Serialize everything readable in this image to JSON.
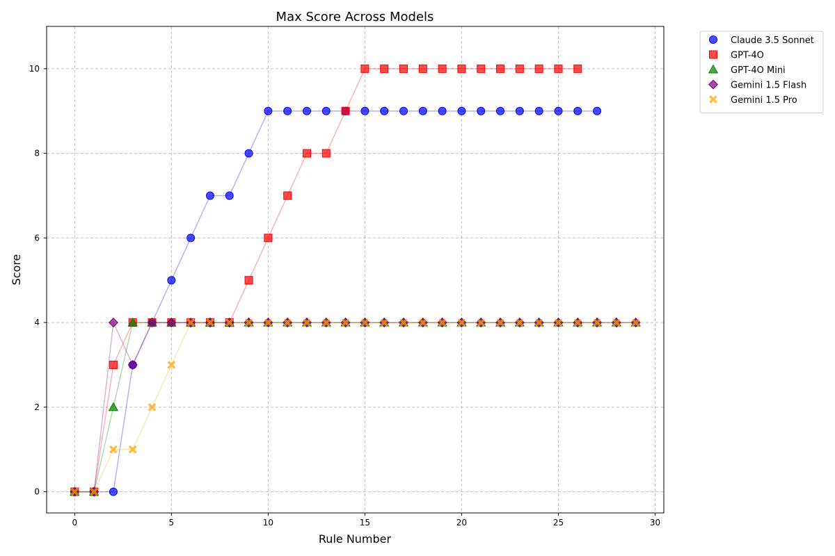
{
  "chart_data": {
    "type": "scatter",
    "title": "Max Score Across Models",
    "xlabel": "Rule Number",
    "ylabel": "Score",
    "xlim": [
      -1.45,
      30.45
    ],
    "ylim": [
      -0.5,
      11
    ],
    "xticks": [
      0,
      5,
      10,
      15,
      20,
      25,
      30
    ],
    "yticks": [
      0,
      2,
      4,
      6,
      8,
      10
    ],
    "grid": true,
    "legend_position": "outside-top-right",
    "series": [
      {
        "name": "Claude 3.5 Sonnet",
        "color": "#0000ff",
        "marker": "circle",
        "x": [
          0,
          1,
          2,
          3,
          4,
          5,
          6,
          7,
          8,
          9,
          10,
          11,
          12,
          13,
          14,
          15,
          16,
          17,
          18,
          19,
          20,
          21,
          22,
          23,
          24,
          25,
          26,
          27
        ],
        "y": [
          0,
          0,
          0,
          3,
          4,
          5,
          6,
          7,
          7,
          8,
          9,
          9,
          9,
          9,
          9,
          9,
          9,
          9,
          9,
          9,
          9,
          9,
          9,
          9,
          9,
          9,
          9,
          9
        ]
      },
      {
        "name": "GPT-4O",
        "color": "#ff0000",
        "marker": "square",
        "x": [
          0,
          1,
          2,
          3,
          4,
          5,
          6,
          7,
          8,
          9,
          10,
          11,
          12,
          13,
          14,
          15,
          16,
          17,
          18,
          19,
          20,
          21,
          22,
          23,
          24,
          25,
          26
        ],
        "y": [
          0,
          0,
          3,
          4,
          4,
          4,
          4,
          4,
          4,
          5,
          6,
          7,
          8,
          8,
          9,
          10,
          10,
          10,
          10,
          10,
          10,
          10,
          10,
          10,
          10,
          10,
          10
        ]
      },
      {
        "name": "GPT-4O Mini",
        "color": "#008000",
        "marker": "triangle",
        "x": [
          0,
          1,
          2,
          3,
          4,
          5,
          6,
          7,
          8,
          9,
          10,
          11,
          12,
          13,
          14,
          15,
          16,
          17,
          18,
          19,
          20,
          21,
          22,
          23,
          24,
          25,
          26,
          27,
          28,
          29
        ],
        "y": [
          0,
          0,
          2,
          4,
          4,
          4,
          4,
          4,
          4,
          4,
          4,
          4,
          4,
          4,
          4,
          4,
          4,
          4,
          4,
          4,
          4,
          4,
          4,
          4,
          4,
          4,
          4,
          4,
          4,
          4
        ]
      },
      {
        "name": "Gemini 1.5 Flash",
        "color": "#800080",
        "marker": "diamond",
        "x": [
          0,
          1,
          2,
          3,
          4,
          5,
          6,
          7,
          8,
          9,
          10,
          11,
          12,
          13,
          14,
          15,
          16,
          17,
          18,
          19,
          20,
          21,
          22,
          23,
          24,
          25,
          26,
          27,
          28,
          29
        ],
        "y": [
          0,
          0,
          4,
          3,
          4,
          4,
          4,
          4,
          4,
          4,
          4,
          4,
          4,
          4,
          4,
          4,
          4,
          4,
          4,
          4,
          4,
          4,
          4,
          4,
          4,
          4,
          4,
          4,
          4,
          4
        ]
      },
      {
        "name": "Gemini 1.5 Pro",
        "color": "#ffa500",
        "marker": "x",
        "x": [
          0,
          1,
          2,
          3,
          4,
          5,
          6,
          7,
          8,
          9,
          10,
          11,
          12,
          13,
          14,
          15,
          16,
          17,
          18,
          19,
          20,
          21,
          22,
          23,
          24,
          25,
          26,
          27,
          28,
          29
        ],
        "y": [
          0,
          0,
          1,
          1,
          2,
          3,
          4,
          4,
          4,
          4,
          4,
          4,
          4,
          4,
          4,
          4,
          4,
          4,
          4,
          4,
          4,
          4,
          4,
          4,
          4,
          4,
          4,
          4,
          4,
          4
        ]
      }
    ]
  }
}
